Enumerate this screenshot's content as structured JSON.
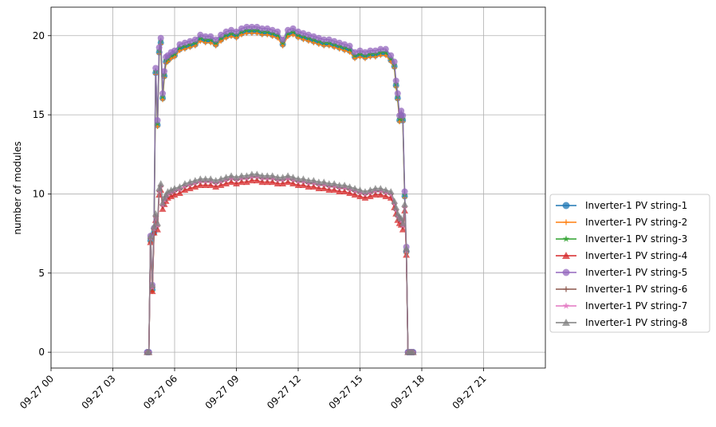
{
  "chart_data": {
    "type": "line",
    "title": "",
    "xlabel": "",
    "ylabel": "number of modules",
    "x_unit": "time (2023-09-27, hours)",
    "xlim": [
      0,
      24
    ],
    "ylim": [
      -1,
      21.8
    ],
    "grid": true,
    "legend_position": "outside-right",
    "x_ticks": [
      {
        "value": 0,
        "label": "09-27 00"
      },
      {
        "value": 3,
        "label": "09-27 03"
      },
      {
        "value": 6,
        "label": "09-27 06"
      },
      {
        "value": 9,
        "label": "09-27 09"
      },
      {
        "value": 12,
        "label": "09-27 12"
      },
      {
        "value": 15,
        "label": "09-27 15"
      },
      {
        "value": 18,
        "label": "09-27 18"
      },
      {
        "value": 21,
        "label": "09-27 21"
      }
    ],
    "y_ticks": [
      {
        "value": 0,
        "label": "0"
      },
      {
        "value": 5,
        "label": "5"
      },
      {
        "value": 10,
        "label": "10"
      },
      {
        "value": 15,
        "label": "15"
      },
      {
        "value": 20,
        "label": "20"
      }
    ],
    "series": [
      {
        "name": "Inverter-1 PV string-1",
        "color": "#1f77b4",
        "marker": "circle",
        "group": "high",
        "offset": -0.15
      },
      {
        "name": "Inverter-1 PV string-2",
        "color": "#ff7f0e",
        "marker": "plus",
        "group": "high",
        "offset": -0.25
      },
      {
        "name": "Inverter-1 PV string-3",
        "color": "#2ca02c",
        "marker": "star",
        "group": "high",
        "offset": -0.05
      },
      {
        "name": "Inverter-1 PV string-4",
        "color": "#d62728",
        "marker": "triangle",
        "group": "low",
        "offset": -0.25
      },
      {
        "name": "Inverter-1 PV string-5",
        "color": "#9467bd",
        "marker": "circle",
        "group": "high",
        "offset": 0.15
      },
      {
        "name": "Inverter-1 PV string-6",
        "color": "#8c564b",
        "marker": "plus",
        "group": "low",
        "offset": -0.05
      },
      {
        "name": "Inverter-1 PV string-7",
        "color": "#e377c2",
        "marker": "star",
        "group": "low",
        "offset": 0.0
      },
      {
        "name": "Inverter-1 PV string-8",
        "color": "#7f7f7f",
        "marker": "triangle",
        "group": "low",
        "offset": 0.15
      }
    ],
    "profiles": {
      "high": {
        "x": [
          4.67,
          4.75,
          4.83,
          4.92,
          5.0,
          5.08,
          5.17,
          5.25,
          5.33,
          5.42,
          5.5,
          5.58,
          5.67,
          5.83,
          6.0,
          6.25,
          6.5,
          6.75,
          7.0,
          7.25,
          7.5,
          7.75,
          8.0,
          8.25,
          8.5,
          8.75,
          9.0,
          9.25,
          9.5,
          9.75,
          10.0,
          10.25,
          10.5,
          10.75,
          11.0,
          11.25,
          11.5,
          11.75,
          12.0,
          12.25,
          12.5,
          12.75,
          13.0,
          13.25,
          13.5,
          13.75,
          14.0,
          14.25,
          14.5,
          14.75,
          15.0,
          15.25,
          15.5,
          15.75,
          16.0,
          16.25,
          16.5,
          16.67,
          16.75,
          16.83,
          16.92,
          17.0,
          17.08,
          17.17,
          17.25,
          17.33,
          17.42,
          17.5,
          17.58
        ],
        "y": [
          0,
          0,
          7.2,
          4.1,
          7.7,
          17.8,
          14.5,
          19.1,
          19.7,
          16.2,
          17.6,
          18.5,
          18.6,
          18.8,
          18.9,
          19.3,
          19.4,
          19.5,
          19.6,
          19.9,
          19.8,
          19.8,
          19.6,
          19.9,
          20.1,
          20.2,
          20.1,
          20.3,
          20.4,
          20.4,
          20.4,
          20.3,
          20.3,
          20.2,
          20.1,
          19.6,
          20.2,
          20.3,
          20.1,
          20.0,
          19.9,
          19.8,
          19.7,
          19.6,
          19.6,
          19.5,
          19.4,
          19.3,
          19.2,
          18.8,
          18.9,
          18.8,
          18.9,
          18.9,
          19.0,
          19.0,
          18.6,
          18.2,
          17.0,
          16.2,
          14.8,
          15.1,
          14.8,
          10.0,
          6.5,
          0,
          0,
          0,
          0
        ]
      },
      "low": {
        "x": [
          4.67,
          4.75,
          4.83,
          4.92,
          5.0,
          5.08,
          5.17,
          5.25,
          5.33,
          5.42,
          5.5,
          5.58,
          5.67,
          5.83,
          6.0,
          6.25,
          6.5,
          6.75,
          7.0,
          7.25,
          7.5,
          7.75,
          8.0,
          8.25,
          8.5,
          8.75,
          9.0,
          9.25,
          9.5,
          9.75,
          10.0,
          10.25,
          10.5,
          10.75,
          11.0,
          11.25,
          11.5,
          11.75,
          12.0,
          12.25,
          12.5,
          12.75,
          13.0,
          13.25,
          13.5,
          13.75,
          14.0,
          14.25,
          14.5,
          14.75,
          15.0,
          15.25,
          15.5,
          15.75,
          16.0,
          16.25,
          16.5,
          16.67,
          16.75,
          16.83,
          16.92,
          17.0,
          17.08,
          17.17,
          17.25,
          17.33,
          17.42,
          17.5,
          17.58
        ],
        "y": [
          0,
          0,
          7.2,
          4.1,
          7.8,
          8.6,
          8.0,
          10.2,
          10.5,
          9.3,
          9.6,
          9.8,
          10.0,
          10.1,
          10.2,
          10.3,
          10.5,
          10.6,
          10.7,
          10.8,
          10.8,
          10.8,
          10.7,
          10.8,
          10.9,
          11.0,
          10.9,
          11.0,
          11.0,
          11.1,
          11.1,
          11.0,
          11.0,
          11.0,
          10.9,
          10.9,
          11.0,
          10.9,
          10.8,
          10.8,
          10.7,
          10.7,
          10.6,
          10.6,
          10.5,
          10.5,
          10.4,
          10.4,
          10.3,
          10.2,
          10.1,
          10.0,
          10.1,
          10.2,
          10.2,
          10.1,
          10.0,
          9.4,
          9.0,
          8.6,
          8.4,
          8.3,
          8.0,
          9.2,
          6.4,
          0,
          0,
          0,
          0
        ]
      }
    }
  }
}
